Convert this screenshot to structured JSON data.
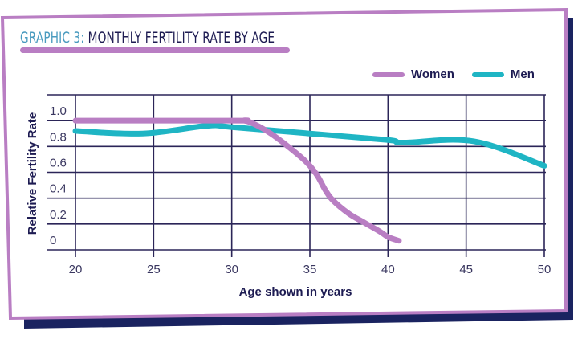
{
  "title": {
    "prefix": "GRAPHIC 3:",
    "main": "MONTHLY FERTILITY RATE BY AGE"
  },
  "colors": {
    "frame_border": "#b97ec3",
    "frame_shadow": "#1a2360",
    "grid": "#2b2558",
    "women": "#b97ec3",
    "men": "#1fb5c4",
    "title_prefix": "#4a9bbf",
    "title_main": "#1d1b52"
  },
  "chart_data": {
    "type": "line",
    "title": "Monthly Fertility Rate by Age",
    "xlabel": "Age shown in years",
    "ylabel": "Relative Fertility Rate",
    "xlim": [
      20,
      50
    ],
    "ylim": [
      0,
      1.2
    ],
    "x_ticks": [
      20,
      25,
      30,
      35,
      40,
      45,
      50
    ],
    "x_tick_labels": [
      "20",
      "25",
      "30",
      "35",
      "40",
      "45",
      "50"
    ],
    "y_ticks": [
      0,
      0.2,
      0.4,
      0.6,
      0.8,
      1.0
    ],
    "y_tick_labels": [
      "0",
      "0.2",
      "0.4",
      "0.6",
      "0.8",
      "1.0"
    ],
    "grid": true,
    "legend_position": "top-right",
    "series": [
      {
        "name": "Women",
        "color": "#b97ec3",
        "points": [
          [
            20,
            1.0
          ],
          [
            30,
            1.0
          ],
          [
            30.8,
            1.0
          ],
          [
            31.5,
            0.97
          ],
          [
            32.5,
            0.9
          ],
          [
            33.5,
            0.81
          ],
          [
            34.5,
            0.71
          ],
          [
            35,
            0.65
          ],
          [
            35.5,
            0.57
          ],
          [
            36,
            0.46
          ],
          [
            36.5,
            0.38
          ],
          [
            37.5,
            0.28
          ],
          [
            38.5,
            0.21
          ],
          [
            39.5,
            0.14
          ],
          [
            40,
            0.1
          ],
          [
            40.7,
            0.07
          ]
        ]
      },
      {
        "name": "Men",
        "color": "#1fb5c4",
        "points": [
          [
            20,
            0.92
          ],
          [
            24.3,
            0.9
          ],
          [
            28.4,
            0.96
          ],
          [
            30,
            0.95
          ],
          [
            35,
            0.9
          ],
          [
            40,
            0.85
          ],
          [
            41,
            0.83
          ],
          [
            45.5,
            0.84
          ],
          [
            50,
            0.65
          ]
        ]
      }
    ]
  }
}
